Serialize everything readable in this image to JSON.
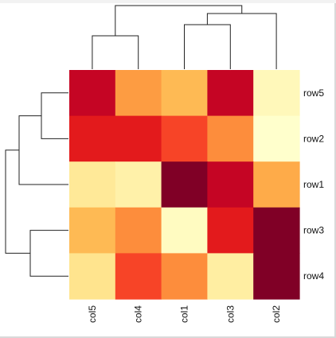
{
  "chart_data": {
    "type": "heatmap",
    "title": "",
    "rows": [
      "row5",
      "row2",
      "row1",
      "row3",
      "row4"
    ],
    "columns": [
      "col5",
      "col4",
      "col1",
      "col3",
      "col2"
    ],
    "values": [
      [
        0.85,
        0.45,
        0.35,
        0.85,
        0.05
      ],
      [
        0.75,
        0.75,
        0.65,
        0.5,
        0.0
      ],
      [
        0.15,
        0.1,
        1.0,
        0.85,
        0.4
      ],
      [
        0.35,
        0.5,
        0.03,
        0.75,
        1.0
      ],
      [
        0.18,
        0.65,
        0.5,
        0.12,
        1.0
      ]
    ],
    "colormap": [
      "#ffffcc",
      "#ffeda0",
      "#fed976",
      "#feb24c",
      "#fd8d3c",
      "#fc4e2a",
      "#e31a1c",
      "#bd0026",
      "#800026"
    ],
    "row_dendrogram": "row5+row2 ; row3+row4 ; (row5,row2)+row1 ; all",
    "column_dendrogram": "col5+col4 ; col1+col3 ; (col1,col3)+col2 ; all",
    "colorbar": false,
    "legend": "none"
  }
}
